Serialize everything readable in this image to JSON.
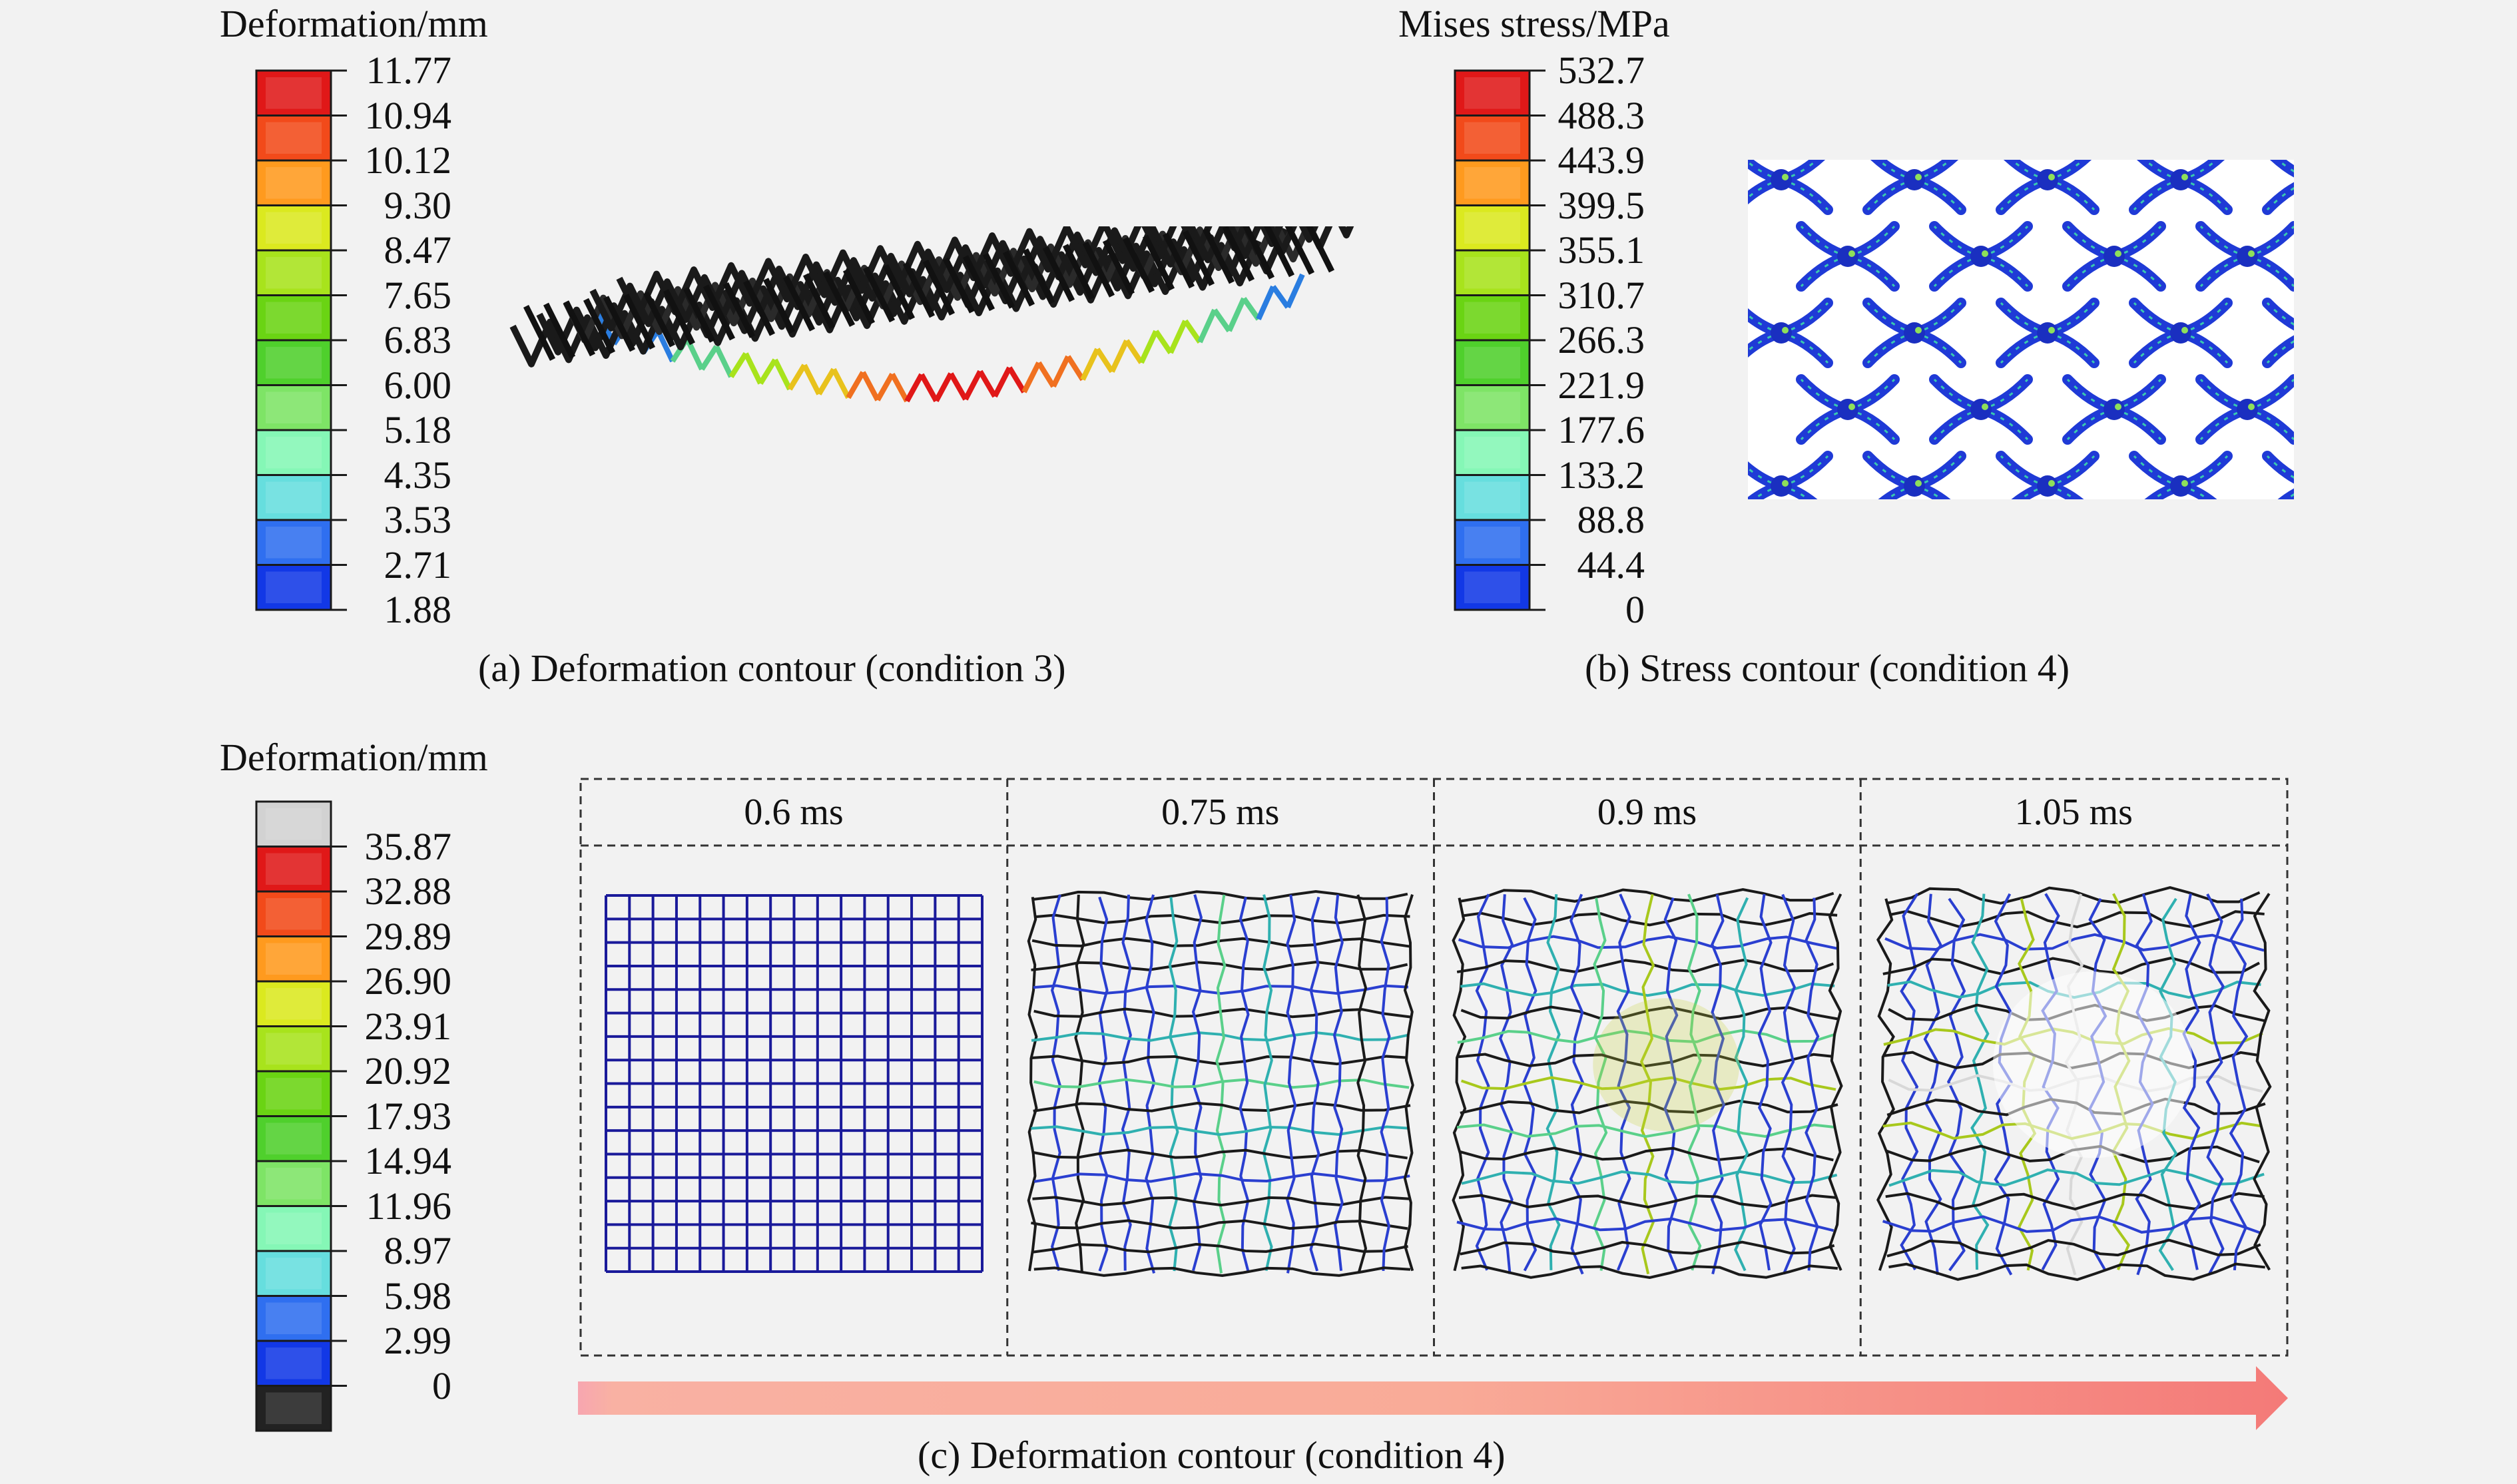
{
  "legend_a": {
    "title": "Deformation/mm",
    "ticks": [
      "11.77",
      "10.94",
      "10.12",
      "9.30",
      "8.47",
      "7.65",
      "6.83",
      "6.00",
      "5.18",
      "4.35",
      "3.53",
      "2.71",
      "1.88"
    ],
    "colors": [
      "#e01818",
      "#f24a1a",
      "#ff9a1e",
      "#dbe91f",
      "#a8e31c",
      "#6ad413",
      "#4fd02c",
      "#7ee466",
      "#85f7b6",
      "#66dede",
      "#2f6ff0",
      "#1238e6"
    ]
  },
  "legend_b": {
    "title": "Mises stress/MPa",
    "ticks": [
      "532.7",
      "488.3",
      "443.9",
      "399.5",
      "355.1",
      "310.7",
      "266.3",
      "221.9",
      "177.6",
      "133.2",
      "88.8",
      "44.4",
      "0"
    ],
    "colors": [
      "#e01818",
      "#f24a1a",
      "#ff9a1e",
      "#dbe91f",
      "#a8e31c",
      "#6ad413",
      "#4fd02c",
      "#7ee466",
      "#85f7b6",
      "#66dede",
      "#2f6ff0",
      "#1238e6"
    ]
  },
  "legend_c": {
    "title": "Deformation/mm",
    "ticks": [
      "35.87",
      "32.88",
      "29.89",
      "26.90",
      "23.91",
      "20.92",
      "17.93",
      "14.94",
      "11.96",
      "8.97",
      "5.98",
      "2.99",
      "0"
    ],
    "colors": [
      "#d2d2d2",
      "#e01818",
      "#f24a1a",
      "#ff9a1e",
      "#dbe91f",
      "#a8e31c",
      "#6ad413",
      "#4fd02c",
      "#7ee466",
      "#85f7b6",
      "#66dede",
      "#2f6ff0",
      "#1238e6",
      "#222222"
    ]
  },
  "captions": {
    "a": "(a) Deformation contour (condition 3)",
    "b": "(b) Stress contour (condition 4)",
    "c": "(c) Deformation contour (condition 4)"
  },
  "time_panels": [
    "0.6 ms",
    "0.75 ms",
    "0.9 ms",
    "1.05 ms"
  ]
}
